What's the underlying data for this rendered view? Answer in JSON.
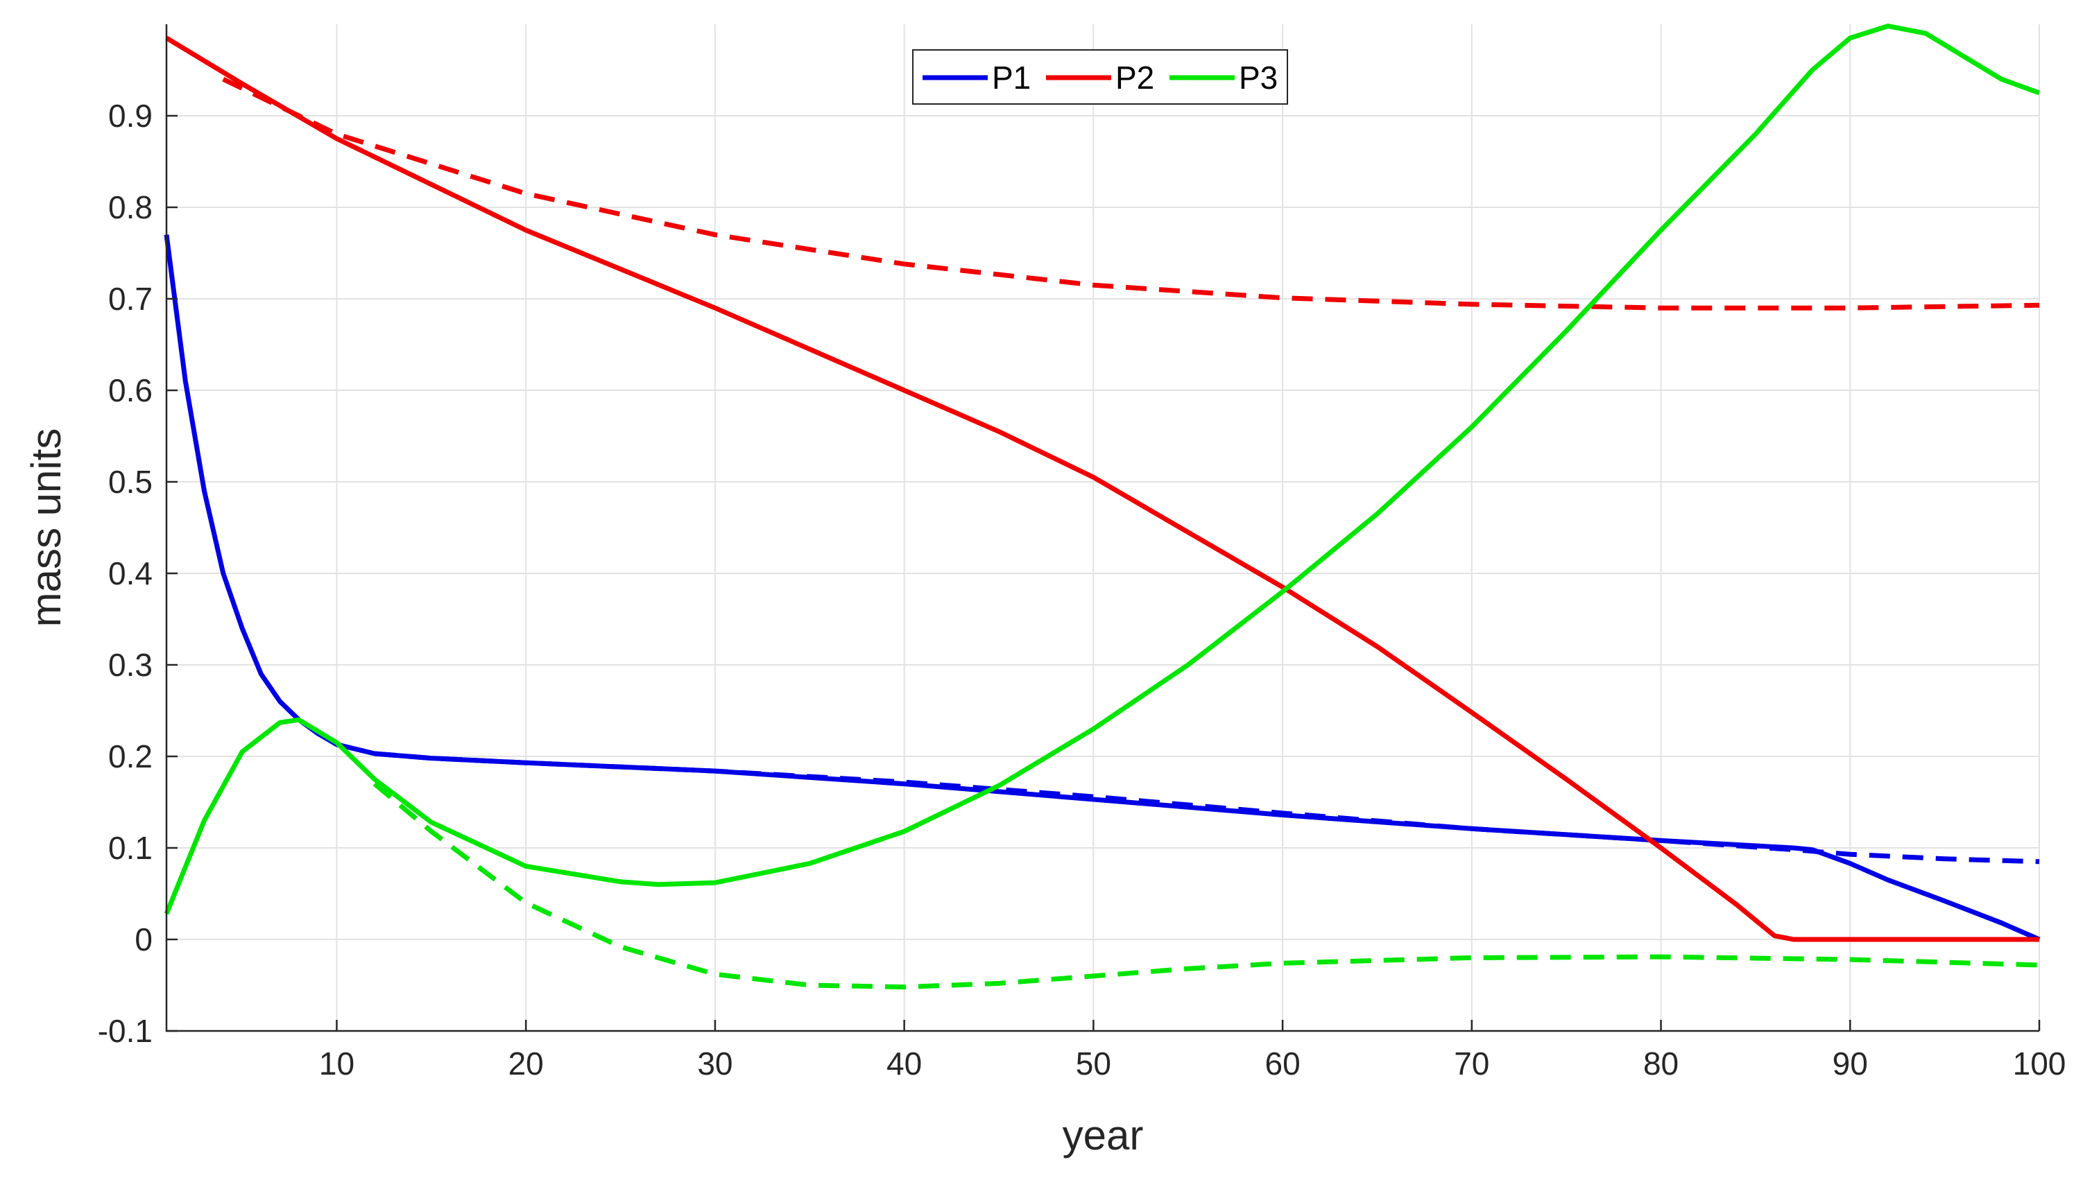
{
  "chart_data": {
    "type": "line",
    "title": "",
    "xlabel": "year",
    "ylabel": "mass units",
    "xlim": [
      1,
      100
    ],
    "ylim": [
      -0.1,
      1.0
    ],
    "xticks": [
      10,
      20,
      30,
      40,
      50,
      60,
      70,
      80,
      90,
      100
    ],
    "yticks": [
      -0.1,
      0,
      0.1,
      0.2,
      0.3,
      0.4,
      0.5,
      0.6,
      0.7,
      0.8,
      0.9
    ],
    "ytick_labels": [
      "-0.1",
      "0",
      "0.1",
      "0.2",
      "0.3",
      "0.4",
      "0.5",
      "0.6",
      "0.7",
      "0.8",
      "0.9"
    ],
    "grid": true,
    "legend": {
      "placement": "top-center",
      "orientation": "horizontal",
      "entries": [
        "P1",
        "P2",
        "P3"
      ]
    },
    "series": [
      {
        "name": "P1",
        "style": "solid",
        "color": "#0000e6",
        "points": [
          [
            1,
            0.77
          ],
          [
            2,
            0.61
          ],
          [
            3,
            0.49
          ],
          [
            4,
            0.4
          ],
          [
            5,
            0.34
          ],
          [
            6,
            0.29
          ],
          [
            7,
            0.26
          ],
          [
            8,
            0.24
          ],
          [
            9,
            0.225
          ],
          [
            10,
            0.213
          ],
          [
            12,
            0.203
          ],
          [
            15,
            0.198
          ],
          [
            20,
            0.193
          ],
          [
            30,
            0.184
          ],
          [
            40,
            0.17
          ],
          [
            50,
            0.153
          ],
          [
            60,
            0.136
          ],
          [
            70,
            0.121
          ],
          [
            80,
            0.108
          ],
          [
            87,
            0.1
          ],
          [
            88,
            0.098
          ],
          [
            90,
            0.083
          ],
          [
            92,
            0.065
          ],
          [
            95,
            0.042
          ],
          [
            98,
            0.018
          ],
          [
            100,
            0.0
          ]
        ]
      },
      {
        "name": "P1 (dashed)",
        "style": "dashed",
        "color": "#0000e6",
        "points": [
          [
            12,
            0.203
          ],
          [
            15,
            0.198
          ],
          [
            20,
            0.193
          ],
          [
            30,
            0.184
          ],
          [
            40,
            0.172
          ],
          [
            50,
            0.156
          ],
          [
            60,
            0.138
          ],
          [
            70,
            0.121
          ],
          [
            80,
            0.108
          ],
          [
            87,
            0.098
          ],
          [
            90,
            0.093
          ],
          [
            95,
            0.088
          ],
          [
            100,
            0.085
          ]
        ]
      },
      {
        "name": "P2",
        "style": "solid",
        "color": "#f00000",
        "points": [
          [
            1,
            0.985
          ],
          [
            5,
            0.935
          ],
          [
            10,
            0.875
          ],
          [
            20,
            0.775
          ],
          [
            30,
            0.69
          ],
          [
            40,
            0.6
          ],
          [
            45,
            0.555
          ],
          [
            50,
            0.505
          ],
          [
            55,
            0.445
          ],
          [
            60,
            0.385
          ],
          [
            65,
            0.32
          ],
          [
            70,
            0.248
          ],
          [
            75,
            0.175
          ],
          [
            80,
            0.1
          ],
          [
            84,
            0.038
          ],
          [
            86,
            0.004
          ],
          [
            87,
            0.0
          ],
          [
            90,
            0.0
          ],
          [
            100,
            0.0
          ]
        ]
      },
      {
        "name": "P2 (dashed)",
        "style": "dashed",
        "color": "#f00000",
        "points": [
          [
            4,
            0.94
          ],
          [
            10,
            0.88
          ],
          [
            20,
            0.815
          ],
          [
            30,
            0.77
          ],
          [
            40,
            0.738
          ],
          [
            50,
            0.715
          ],
          [
            60,
            0.701
          ],
          [
            70,
            0.694
          ],
          [
            80,
            0.69
          ],
          [
            85,
            0.69
          ],
          [
            90,
            0.69
          ],
          [
            100,
            0.693
          ]
        ]
      },
      {
        "name": "P3",
        "style": "solid",
        "color": "#00e600",
        "points": [
          [
            1,
            0.028
          ],
          [
            3,
            0.13
          ],
          [
            5,
            0.205
          ],
          [
            7,
            0.237
          ],
          [
            8,
            0.24
          ],
          [
            10,
            0.215
          ],
          [
            12,
            0.175
          ],
          [
            15,
            0.128
          ],
          [
            20,
            0.08
          ],
          [
            25,
            0.063
          ],
          [
            27,
            0.06
          ],
          [
            30,
            0.062
          ],
          [
            35,
            0.083
          ],
          [
            40,
            0.118
          ],
          [
            45,
            0.168
          ],
          [
            50,
            0.23
          ],
          [
            55,
            0.3
          ],
          [
            60,
            0.38
          ],
          [
            65,
            0.465
          ],
          [
            70,
            0.56
          ],
          [
            75,
            0.665
          ],
          [
            80,
            0.775
          ],
          [
            85,
            0.88
          ],
          [
            88,
            0.95
          ],
          [
            90,
            0.985
          ],
          [
            92,
            0.998
          ],
          [
            94,
            0.99
          ],
          [
            96,
            0.965
          ],
          [
            98,
            0.94
          ],
          [
            100,
            0.925
          ]
        ]
      },
      {
        "name": "P3 (dashed)",
        "style": "dashed",
        "color": "#00e600",
        "points": [
          [
            12,
            0.17
          ],
          [
            15,
            0.118
          ],
          [
            20,
            0.04
          ],
          [
            25,
            -0.008
          ],
          [
            30,
            -0.038
          ],
          [
            35,
            -0.05
          ],
          [
            40,
            -0.052
          ],
          [
            45,
            -0.048
          ],
          [
            50,
            -0.04
          ],
          [
            55,
            -0.032
          ],
          [
            60,
            -0.026
          ],
          [
            70,
            -0.02
          ],
          [
            80,
            -0.019
          ],
          [
            90,
            -0.022
          ],
          [
            100,
            -0.028
          ]
        ]
      }
    ]
  }
}
